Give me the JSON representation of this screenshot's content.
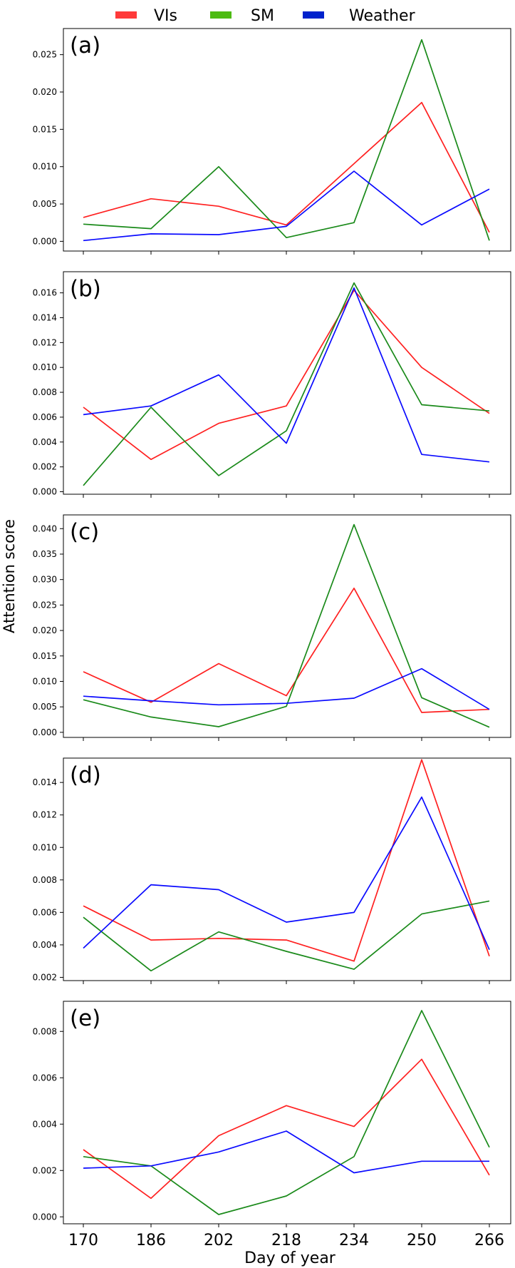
{
  "legend": [
    {
      "label": "VIs",
      "color": "#ff3a3a"
    },
    {
      "label": "SM",
      "color": "#4dbb12"
    },
    {
      "label": "Weather",
      "color": "#0022cc"
    }
  ],
  "ylabel": "Attention score",
  "xlabel": "Day of year",
  "chart_data": [
    {
      "type": "line",
      "panel_label": "(a)",
      "x": [
        170,
        186,
        202,
        218,
        234,
        250,
        266
      ],
      "ylim": [
        -0.0013,
        0.0285
      ],
      "yticks": [
        "0.000",
        "0.005",
        "0.010",
        "0.015",
        "0.020",
        "0.025"
      ],
      "ytick_values": [
        0,
        0.005,
        0.01,
        0.015,
        0.02,
        0.025
      ],
      "series": [
        {
          "name": "VIs",
          "color": "#ff2020",
          "values": [
            0.0032,
            0.0057,
            0.0047,
            0.0022,
            0.0104,
            0.0186,
            0.0012
          ]
        },
        {
          "name": "SM",
          "color": "#1a8a1a",
          "values": [
            0.0023,
            0.0017,
            0.01,
            0.0005,
            0.0025,
            0.027,
            0.0001
          ]
        },
        {
          "name": "Weather",
          "color": "#0a0aff",
          "values": [
            0.0001,
            0.001,
            0.0009,
            0.002,
            0.0094,
            0.0022,
            0.007
          ]
        }
      ]
    },
    {
      "type": "line",
      "panel_label": "(b)",
      "x": [
        170,
        186,
        202,
        218,
        234,
        250,
        266
      ],
      "ylim": [
        -0.0002,
        0.0177
      ],
      "yticks": [
        "0.000",
        "0.002",
        "0.004",
        "0.006",
        "0.008",
        "0.010",
        "0.012",
        "0.014",
        "0.016"
      ],
      "ytick_values": [
        0,
        0.002,
        0.004,
        0.006,
        0.008,
        0.01,
        0.012,
        0.014,
        0.016
      ],
      "series": [
        {
          "name": "VIs",
          "color": "#ff2020",
          "values": [
            0.0068,
            0.0026,
            0.0055,
            0.0069,
            0.0162,
            0.01,
            0.0063
          ]
        },
        {
          "name": "SM",
          "color": "#1a8a1a",
          "values": [
            0.0005,
            0.0068,
            0.0013,
            0.0049,
            0.0168,
            0.007,
            0.0065
          ]
        },
        {
          "name": "Weather",
          "color": "#0a0aff",
          "values": [
            0.0062,
            0.0069,
            0.0094,
            0.0039,
            0.0164,
            0.003,
            0.0024
          ]
        }
      ]
    },
    {
      "type": "line",
      "panel_label": "(c)",
      "x": [
        170,
        186,
        202,
        218,
        234,
        250,
        266
      ],
      "ylim": [
        -0.001,
        0.0427
      ],
      "yticks": [
        "0.000",
        "0.005",
        "0.010",
        "0.015",
        "0.020",
        "0.025",
        "0.030",
        "0.035",
        "0.040"
      ],
      "ytick_values": [
        0,
        0.005,
        0.01,
        0.015,
        0.02,
        0.025,
        0.03,
        0.035,
        0.04
      ],
      "series": [
        {
          "name": "VIs",
          "color": "#ff2020",
          "values": [
            0.0119,
            0.0059,
            0.0135,
            0.0072,
            0.0283,
            0.0039,
            0.0045
          ]
        },
        {
          "name": "SM",
          "color": "#1a8a1a",
          "values": [
            0.0064,
            0.003,
            0.0011,
            0.0051,
            0.0408,
            0.0068,
            0.001
          ]
        },
        {
          "name": "Weather",
          "color": "#0a0aff",
          "values": [
            0.0071,
            0.0062,
            0.0054,
            0.0057,
            0.0067,
            0.0125,
            0.0045
          ]
        }
      ]
    },
    {
      "type": "line",
      "panel_label": "(d)",
      "x": [
        170,
        186,
        202,
        218,
        234,
        250,
        266
      ],
      "ylim": [
        0.0018,
        0.0155
      ],
      "yticks": [
        "0.002",
        "0.004",
        "0.006",
        "0.008",
        "0.010",
        "0.012",
        "0.014"
      ],
      "ytick_values": [
        0.002,
        0.004,
        0.006,
        0.008,
        0.01,
        0.012,
        0.014
      ],
      "series": [
        {
          "name": "VIs",
          "color": "#ff2020",
          "values": [
            0.0064,
            0.0043,
            0.0044,
            0.0043,
            0.003,
            0.0154,
            0.0033
          ]
        },
        {
          "name": "SM",
          "color": "#1a8a1a",
          "values": [
            0.0057,
            0.0024,
            0.0048,
            0.0036,
            0.0025,
            0.0059,
            0.0067
          ]
        },
        {
          "name": "Weather",
          "color": "#0a0aff",
          "values": [
            0.0038,
            0.0077,
            0.0074,
            0.0054,
            0.006,
            0.0131,
            0.0037
          ]
        }
      ]
    },
    {
      "type": "line",
      "panel_label": "(e)",
      "x": [
        170,
        186,
        202,
        218,
        234,
        250,
        266
      ],
      "ylim": [
        -0.0003,
        0.0093
      ],
      "yticks": [
        "0.000",
        "0.002",
        "0.004",
        "0.006",
        "0.008"
      ],
      "ytick_values": [
        0,
        0.002,
        0.004,
        0.006,
        0.008
      ],
      "series": [
        {
          "name": "VIs",
          "color": "#ff2020",
          "values": [
            0.0029,
            0.0008,
            0.0035,
            0.0048,
            0.0039,
            0.0068,
            0.0018
          ]
        },
        {
          "name": "SM",
          "color": "#1a8a1a",
          "values": [
            0.0026,
            0.0022,
            0.0001,
            0.0009,
            0.0026,
            0.0089,
            0.003
          ]
        },
        {
          "name": "Weather",
          "color": "#0a0aff",
          "values": [
            0.0021,
            0.0022,
            0.0028,
            0.0037,
            0.0019,
            0.0024,
            0.0024
          ]
        }
      ]
    }
  ]
}
